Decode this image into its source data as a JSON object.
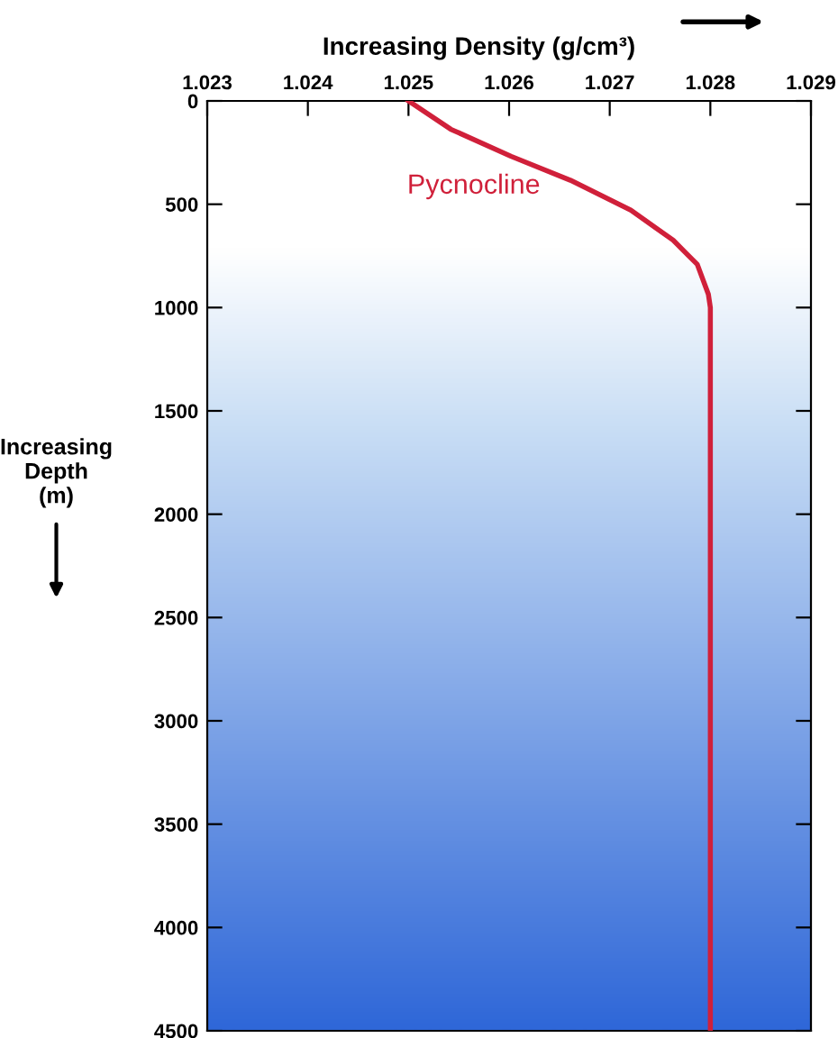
{
  "chart_data": {
    "type": "line",
    "xlabel": "Increasing Density (g/cm³)",
    "ylabel": "Increasing\nDepth\n(m)",
    "xlim": [
      1.023,
      1.029
    ],
    "xticks": [
      1.023,
      1.024,
      1.025,
      1.026,
      1.027,
      1.028,
      1.029
    ],
    "ylim": [
      4500,
      0
    ],
    "yticks": [
      0,
      500,
      1000,
      1500,
      2000,
      2500,
      3000,
      3500,
      4000,
      4500
    ],
    "grid": false,
    "legend": false,
    "marker": "none",
    "line_style": "solid",
    "series": [
      {
        "name": "Pycnocline",
        "color": "#d0203a",
        "x": [
          1.025,
          1.02542,
          1.02602,
          1.02661,
          1.02721,
          1.02763,
          1.02787,
          1.02798,
          1.028,
          1.028
        ],
        "values": [
          0,
          137,
          268,
          384,
          529,
          674,
          791,
          935,
          1000,
          4500
        ]
      }
    ]
  }
}
